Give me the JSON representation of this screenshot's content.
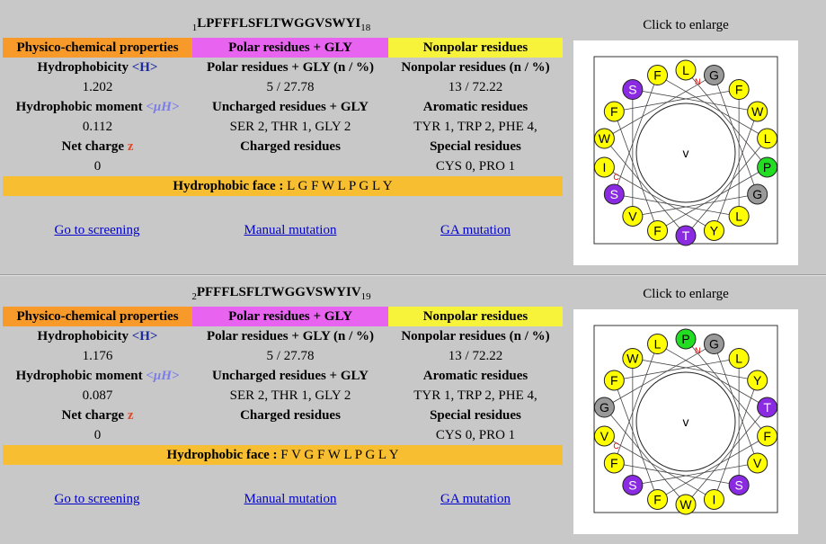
{
  "blocks": [
    {
      "seq_start": "1",
      "sequence": "LPFFFLSFLTWGGVSWYI",
      "seq_end": "18",
      "click_to_enlarge": "Click to enlarge",
      "headers": {
        "physchem": "Physico-chemical properties",
        "polar": "Polar residues + GLY",
        "nonpolar": "Nonpolar residues"
      },
      "hydrophobicity_label": "Hydrophobicity",
      "hydrophobicity_symbol": "<H>",
      "hydrophobicity": "1.202",
      "polar_n_label": "Polar residues + GLY (n / %)",
      "polar_n": "5 / 27.78",
      "nonpolar_n_label": "Nonpolar residues (n / %)",
      "nonpolar_n": "13 / 72.22",
      "moment_label": "Hydrophobic moment",
      "moment_symbol": "<μH>",
      "moment": "0.112",
      "uncharged_label": "Uncharged residues + GLY",
      "uncharged": "SER 2, THR 1, GLY 2",
      "aromatic_label": "Aromatic residues",
      "aromatic": "TYR 1, TRP 2, PHE 4,",
      "charge_label": "Net charge",
      "charge_symbol": "z",
      "charge": "0",
      "charged_label": "Charged residues",
      "charged": "",
      "special_label": "Special residues",
      "special": "CYS 0, PRO 1",
      "face_label": "Hydrophobic face :",
      "face": "L G F W L P G L Y",
      "links": {
        "screening": "Go to screening",
        "manual": "Manual mutation",
        "ga": "GA mutation"
      },
      "wheel": {
        "residues": [
          "L",
          "P",
          "F",
          "F",
          "F",
          "L",
          "S",
          "F",
          "L",
          "T",
          "W",
          "G",
          "G",
          "V",
          "S",
          "W",
          "Y",
          "I"
        ],
        "n_label": "N",
        "c_label": "C",
        "center_symbol": "v"
      }
    },
    {
      "seq_start": "2",
      "sequence": "PFFFLSFLTWGGVSWYIV",
      "seq_end": "19",
      "click_to_enlarge": "Click to enlarge",
      "headers": {
        "physchem": "Physico-chemical properties",
        "polar": "Polar residues + GLY",
        "nonpolar": "Nonpolar residues"
      },
      "hydrophobicity_label": "Hydrophobicity",
      "hydrophobicity_symbol": "<H>",
      "hydrophobicity": "1.176",
      "polar_n_label": "Polar residues + GLY (n / %)",
      "polar_n": "5 / 27.78",
      "nonpolar_n_label": "Nonpolar residues (n / %)",
      "nonpolar_n": "13 / 72.22",
      "moment_label": "Hydrophobic moment",
      "moment_symbol": "<μH>",
      "moment": "0.087",
      "uncharged_label": "Uncharged residues + GLY",
      "uncharged": "SER 2, THR 1, GLY 2",
      "aromatic_label": "Aromatic residues",
      "aromatic": "TYR 1, TRP 2, PHE 4,",
      "charge_label": "Net charge",
      "charge_symbol": "z",
      "charge": "0",
      "charged_label": "Charged residues",
      "charged": "",
      "special_label": "Special residues",
      "special": "CYS 0, PRO 1",
      "face_label": "Hydrophobic face :",
      "face": "F V G F W L P G L Y",
      "links": {
        "screening": "Go to screening",
        "manual": "Manual mutation",
        "ga": "GA mutation"
      },
      "wheel": {
        "residues": [
          "P",
          "F",
          "F",
          "F",
          "L",
          "S",
          "F",
          "L",
          "T",
          "W",
          "G",
          "G",
          "V",
          "S",
          "W",
          "Y",
          "I",
          "V"
        ],
        "n_label": "N",
        "c_label": "C",
        "center_symbol": "v"
      }
    }
  ],
  "colors": {
    "physchem_header": "#f79a2a",
    "polar_header": "#e864f0",
    "nonpolar_header": "#f7f23a",
    "hydrophobic_face": "#f6be30",
    "link": "#0000cc",
    "residue_hydrophobic": "#ffff00",
    "residue_polar": "#8a2be2",
    "residue_gly": "#999999",
    "residue_pro": "#22dd22",
    "terminal_label": "#dd0000"
  }
}
